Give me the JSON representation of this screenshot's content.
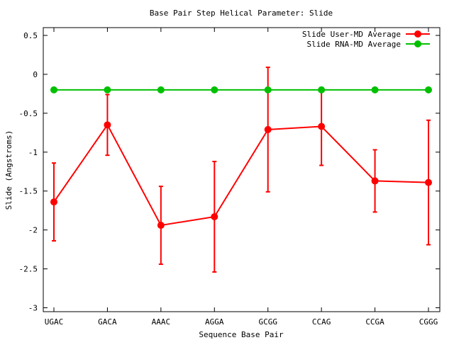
{
  "chart_data": {
    "type": "line",
    "title": "Base Pair Step Helical Parameter: Slide",
    "xlabel": "Sequence Base Pair",
    "ylabel": "Slide (Angstroms)",
    "categories": [
      "UGAC",
      "GACA",
      "AAAC",
      "AGGA",
      "GCGG",
      "CCAG",
      "CCGA",
      "CGGG"
    ],
    "ylim": [
      -3.05,
      0.6
    ],
    "yticks": [
      0.5,
      0,
      -0.5,
      -1,
      -1.5,
      -2,
      -2.5,
      -3
    ],
    "ytick_labels": [
      "0.5",
      "0",
      "-0.5",
      "-1",
      "-1.5",
      "-2",
      "-2.5",
      "-3"
    ],
    "grid": false,
    "legend_position": "top-right",
    "series": [
      {
        "name": "Slide User-MD Average",
        "color": "#ff0000",
        "values": [
          -1.64,
          -0.65,
          -1.94,
          -1.83,
          -0.71,
          -0.67,
          -1.37,
          -1.39
        ],
        "errors": [
          0.5,
          0.39,
          0.5,
          0.71,
          0.8,
          0.5,
          0.4,
          0.8
        ]
      },
      {
        "name": "Slide RNA-MD Average",
        "color": "#00c000",
        "values": [
          -0.2,
          -0.2,
          -0.2,
          -0.2,
          -0.2,
          -0.2,
          -0.2,
          -0.2
        ],
        "errors": [
          0,
          0,
          0,
          0,
          0,
          0,
          0,
          0
        ]
      }
    ]
  }
}
